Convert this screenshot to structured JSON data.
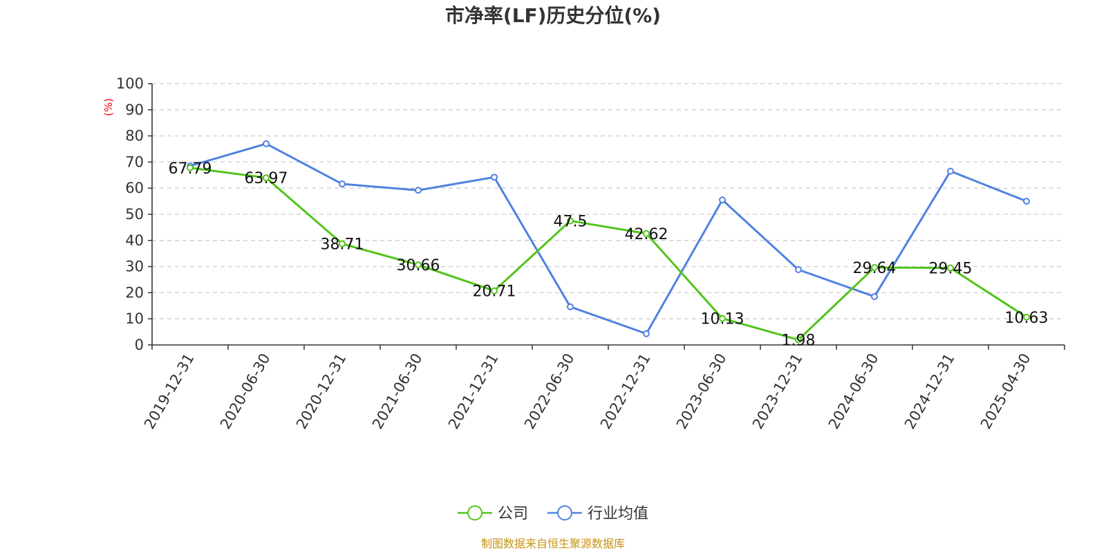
{
  "chart_data": {
    "type": "line",
    "title": "市净率(LF)历史分位(%)",
    "ylabel": "(%)",
    "ylim": [
      0,
      100
    ],
    "yticks": [
      0,
      10,
      20,
      30,
      40,
      50,
      60,
      70,
      80,
      90,
      100
    ],
    "grid": true,
    "legend_position": "bottom",
    "categories": [
      "2019-12-31",
      "2020-06-30",
      "2020-12-31",
      "2021-06-30",
      "2021-12-31",
      "2022-06-30",
      "2022-12-31",
      "2023-06-30",
      "2023-12-31",
      "2024-06-30",
      "2024-12-31",
      "2025-04-30"
    ],
    "series": [
      {
        "name": "公司",
        "color": "#52c41a",
        "values": [
          67.79,
          63.97,
          38.71,
          30.66,
          20.71,
          47.5,
          42.62,
          10.13,
          1.98,
          29.64,
          29.45,
          10.63
        ],
        "labels": [
          "67.79",
          "63.97",
          "38.71",
          "30.66",
          "20.71",
          "47.5",
          "42.62",
          "10.13",
          "1.98",
          "29.64",
          "29.45",
          "10.63"
        ]
      },
      {
        "name": "行业均值",
        "color": "#4f81e0",
        "values": [
          68.5,
          77,
          61.6,
          59.2,
          64.2,
          14.6,
          4.3,
          55.5,
          28.8,
          18.5,
          66.5,
          55
        ]
      }
    ],
    "source": "制图数据来自恒生聚源数据库"
  }
}
